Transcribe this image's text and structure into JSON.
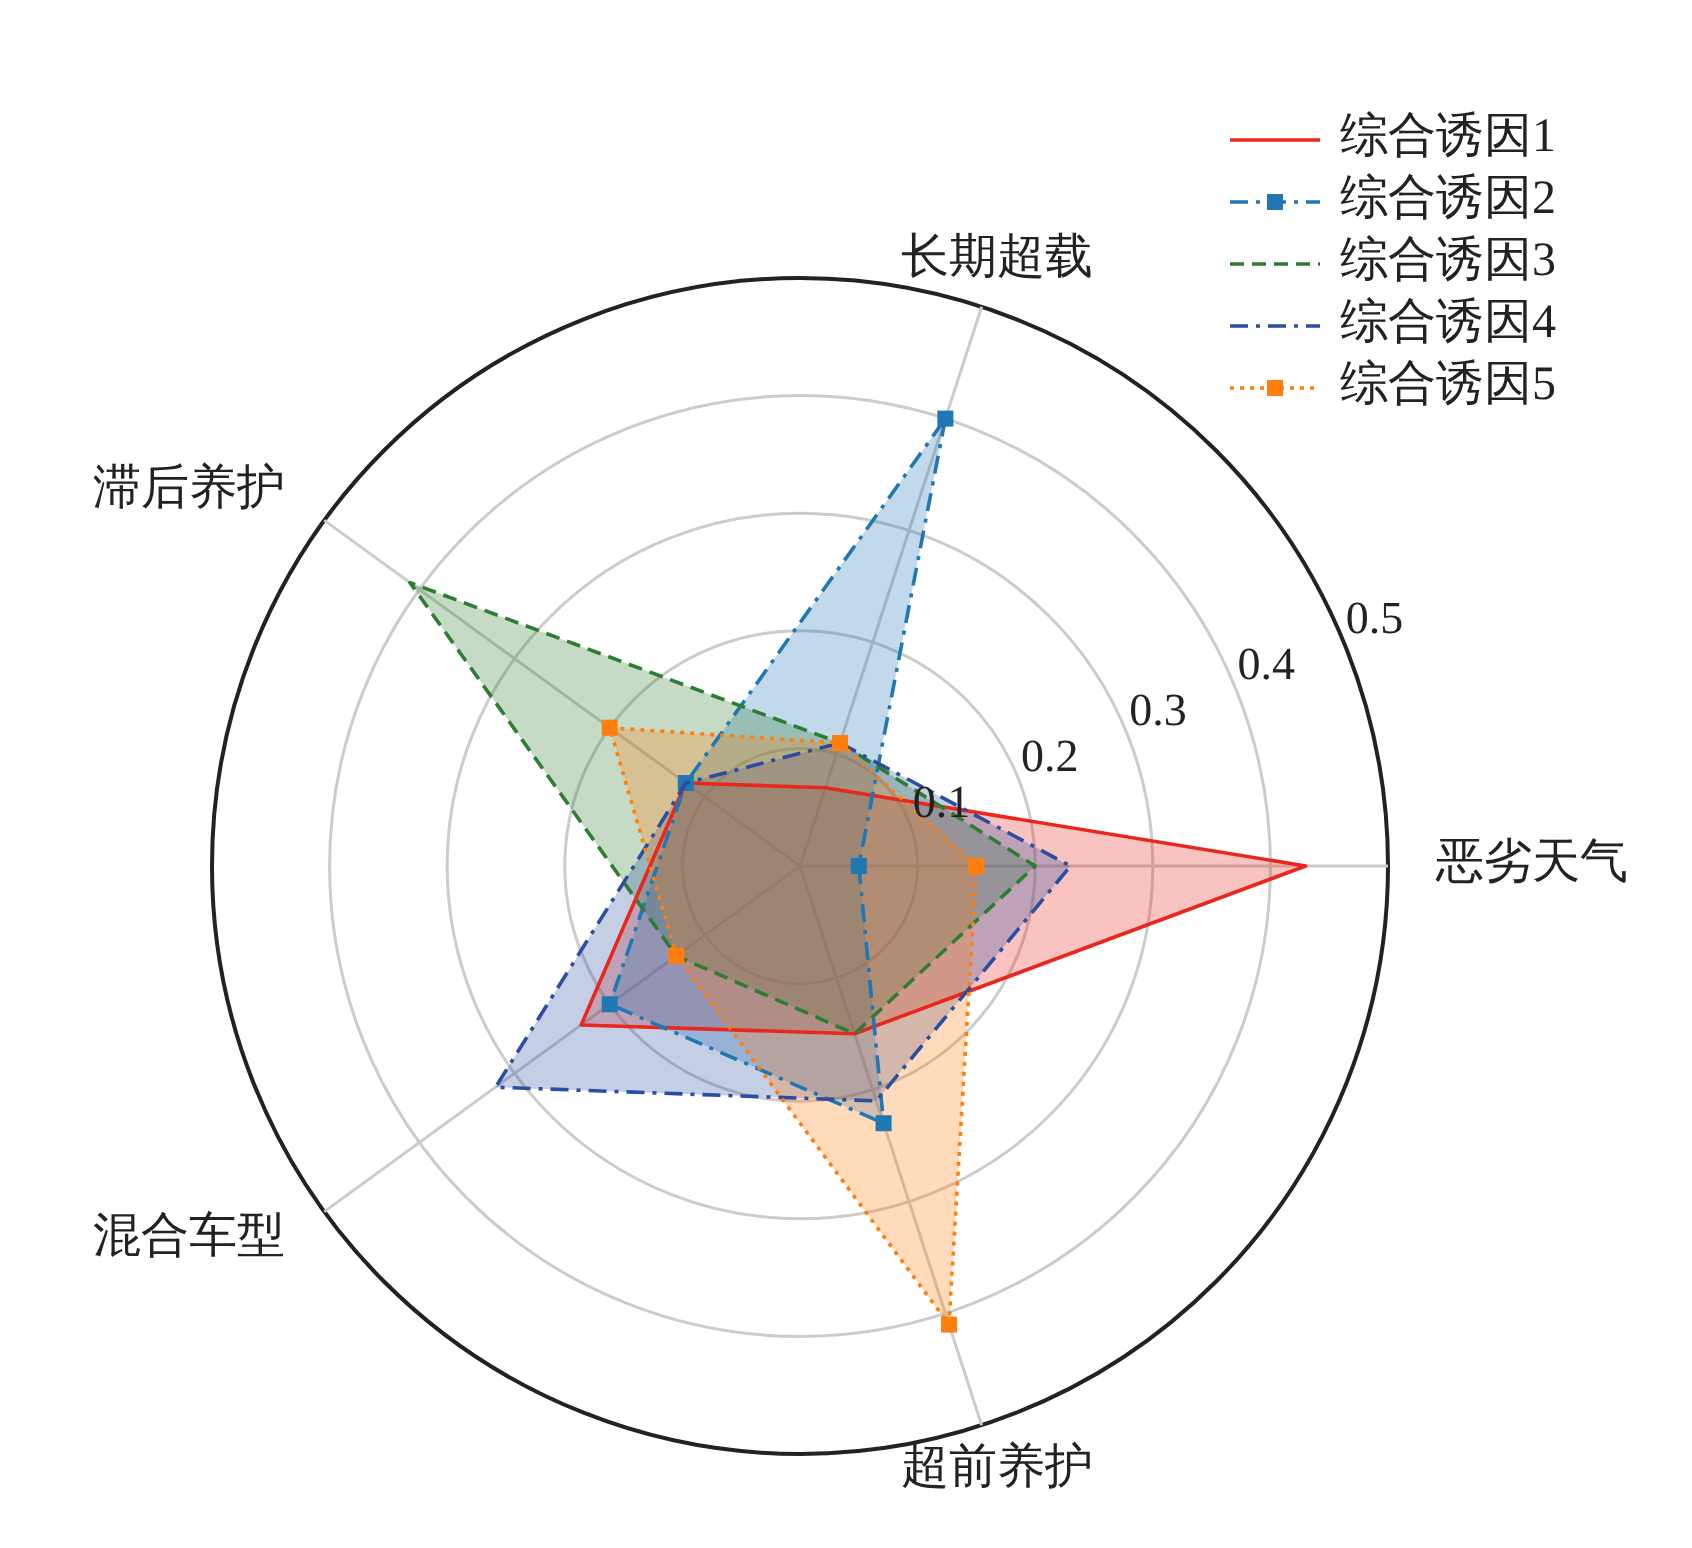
{
  "chart_data": {
    "type": "radar",
    "categories": [
      "长期超载",
      "恶劣天气",
      "超前养护",
      "混合车型",
      "滞后养护"
    ],
    "ylim": [
      0,
      0.5
    ],
    "yticks": [
      0.1,
      0.2,
      0.3,
      0.4,
      0.5
    ],
    "grid": true,
    "legend": "top right",
    "series": [
      {
        "name": "综合诱因1",
        "color": "#e8281e",
        "line_style": "solid",
        "marker": "none",
        "values": [
          0.07,
          0.43,
          0.15,
          0.23,
          0.12
        ]
      },
      {
        "name": "综合诱因2",
        "color": "#1f77b4",
        "line_style": "dashdot",
        "marker": "square",
        "values": [
          0.4,
          0.05,
          0.23,
          0.2,
          0.12
        ]
      },
      {
        "name": "综合诱因3",
        "color": "#2e7d32",
        "line_style": "dashed",
        "marker": "none",
        "values": [
          0.11,
          0.2,
          0.15,
          0.13,
          0.41
        ]
      },
      {
        "name": "综合诱因4",
        "color": "#2b4ea0",
        "line_style": "dashdot",
        "marker": "none",
        "values": [
          0.11,
          0.23,
          0.21,
          0.32,
          0.12
        ]
      },
      {
        "name": "综合诱因5",
        "color": "#ff7f0e",
        "line_style": "dotted",
        "marker": "square",
        "values": [
          0.11,
          0.15,
          0.41,
          0.13,
          0.2
        ]
      }
    ]
  }
}
